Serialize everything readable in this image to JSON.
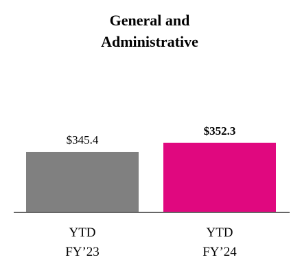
{
  "chart_data": {
    "type": "bar",
    "title": [
      "General and",
      "Administrative"
    ],
    "categories": [
      [
        "YTD",
        "FY’23"
      ],
      [
        "YTD",
        "FY’24"
      ]
    ],
    "values": [
      345.4,
      352.3
    ],
    "value_labels": [
      "$345.4",
      "$352.3"
    ],
    "value_label_bold": [
      false,
      true
    ],
    "colors": [
      "#808080",
      "#e0087f"
    ],
    "ylim": [
      300,
      360
    ],
    "grid": false,
    "legend": "none",
    "axis_color": "#666666"
  }
}
